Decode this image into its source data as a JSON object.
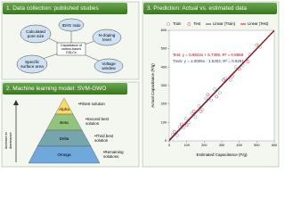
{
  "panels": [
    {
      "title": "1. Data collection: published studies",
      "center": "Capacitance of carbon-based EDLCs",
      "nodes": [
        "Calculated pore size",
        "ID/IG ratio",
        "N-doping level",
        "Specific surface area",
        "Voltage window"
      ]
    },
    {
      "title": "2. Machine learning model: SVM-GWO",
      "axis_label": "Increase in dominance",
      "levels": [
        {
          "name": "Alpha",
          "note": "•Fittest solution"
        },
        {
          "name": "Beta",
          "note": "•Second best solution"
        },
        {
          "name": "Delta",
          "note": "•Third best solution"
        },
        {
          "name": "Omega",
          "note": "•Remaining solutions"
        }
      ]
    }
  ],
  "chart_data": {
    "type": "scatter",
    "title": "3. Prediction: Actual vs. estimated data",
    "x_label": "Estimated Capacitance (F/g)",
    "y_label": "Actual Capacitance (F/g)",
    "annotations": [
      "Test: y = 0.9922x + 5.7395, R² = 0.8958",
      "Train: y = 1.0005x - 1.5302, R² = 0.9281"
    ],
    "xlim": [
      0,
      600
    ],
    "ylim": [
      0,
      600
    ],
    "xticks": [
      0,
      100,
      200,
      300,
      400,
      500,
      600
    ],
    "yticks": [
      0,
      100,
      200,
      300,
      400,
      500,
      600
    ],
    "series": [
      {
        "name": "Train",
        "color": "#7f97b8",
        "style": "markers",
        "x": [
          20,
          45,
          60,
          80,
          95,
          110,
          130,
          150,
          170,
          190,
          210,
          240,
          260,
          290,
          320,
          350,
          380,
          420,
          460,
          520
        ],
        "values": [
          35,
          30,
          75,
          70,
          120,
          100,
          150,
          130,
          190,
          170,
          230,
          220,
          280,
          260,
          340,
          330,
          400,
          410,
          470,
          510
        ]
      },
      {
        "name": "Test",
        "color": "#d04040",
        "style": "markers",
        "x": [
          30,
          70,
          100,
          140,
          180,
          220,
          270,
          310,
          360,
          400,
          450,
          500
        ],
        "values": [
          50,
          90,
          85,
          160,
          160,
          250,
          240,
          330,
          350,
          390,
          430,
          520
        ]
      },
      {
        "name": "Linear (Train)",
        "color": "#1f3864",
        "style": "line",
        "x": [
          0,
          600
        ],
        "values": [
          0,
          598
        ]
      },
      {
        "name": "Linear (Test)",
        "color": "#c00000",
        "style": "line",
        "x": [
          0,
          600
        ],
        "values": [
          6,
          601
        ]
      }
    ]
  }
}
